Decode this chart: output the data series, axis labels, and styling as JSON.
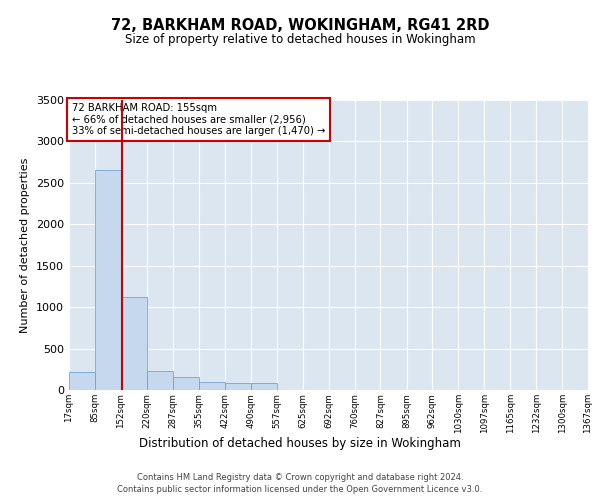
{
  "title": "72, BARKHAM ROAD, WOKINGHAM, RG41 2RD",
  "subtitle": "Size of property relative to detached houses in Wokingham",
  "xlabel": "Distribution of detached houses by size in Wokingham",
  "ylabel": "Number of detached properties",
  "footer_line1": "Contains HM Land Registry data © Crown copyright and database right 2024.",
  "footer_line2": "Contains public sector information licensed under the Open Government Licence v3.0.",
  "annotation_line1": "72 BARKHAM ROAD: 155sqm",
  "annotation_line2": "← 66% of detached houses are smaller (2,956)",
  "annotation_line3": "33% of semi-detached houses are larger (1,470) →",
  "marker_value": 155,
  "bar_color": "#c5d8ed",
  "bar_edge_color": "#5b9bd5",
  "marker_line_color": "#cc0000",
  "annotation_box_edge_color": "#cc0000",
  "plot_background_color": "#dce6f1",
  "ylim": [
    0,
    3500
  ],
  "yticks": [
    0,
    500,
    1000,
    1500,
    2000,
    2500,
    3000,
    3500
  ],
  "bins": [
    17,
    85,
    152,
    220,
    287,
    355,
    422,
    490,
    557,
    625,
    692,
    760,
    827,
    895,
    962,
    1030,
    1097,
    1165,
    1232,
    1300,
    1367
  ],
  "bar_heights": [
    220,
    2650,
    1120,
    230,
    160,
    100,
    90,
    80,
    0,
    0,
    0,
    0,
    0,
    0,
    0,
    0,
    0,
    0,
    0,
    0
  ]
}
